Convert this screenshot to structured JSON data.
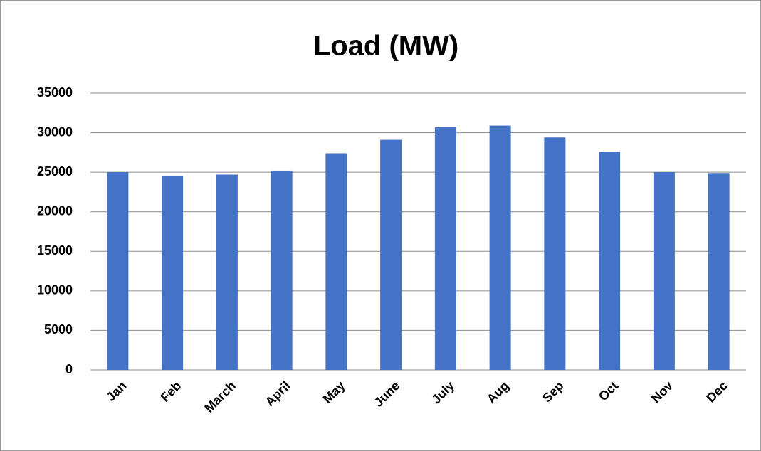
{
  "chart_data": {
    "type": "bar",
    "title": "Load (MW)",
    "categories": [
      "Jan",
      "Feb",
      "March",
      "April",
      "May",
      "June",
      "July",
      "Aug",
      "Sep",
      "Oct",
      "Nov",
      "Dec"
    ],
    "values": [
      25000,
      24500,
      24700,
      25200,
      27400,
      29100,
      30700,
      30900,
      29400,
      27600,
      25000,
      24900
    ],
    "color": "#4472c4",
    "ylim": [
      0,
      35000
    ],
    "yticks": [
      0,
      5000,
      10000,
      15000,
      20000,
      25000,
      30000,
      35000
    ],
    "grid": true
  }
}
